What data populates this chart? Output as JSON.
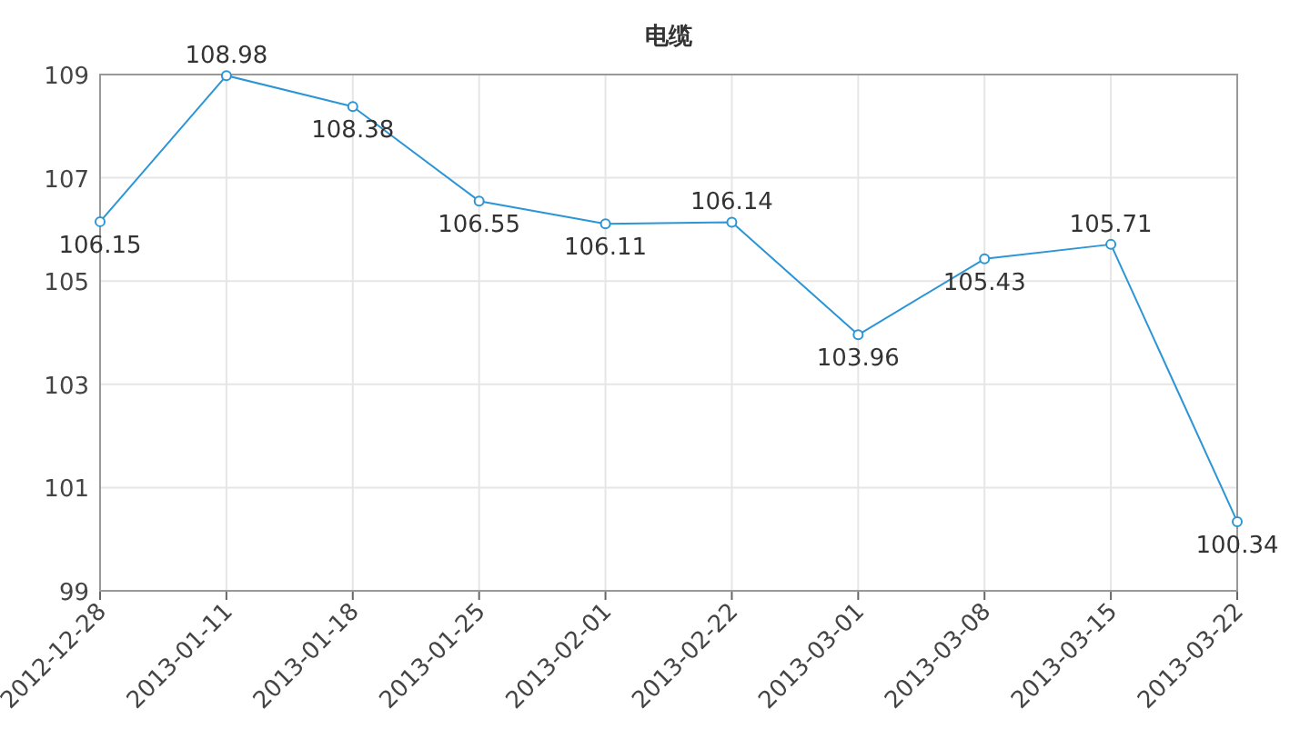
{
  "chart_data": {
    "type": "line",
    "title": "电缆",
    "categories": [
      "2012-12-28",
      "2013-01-11",
      "2013-01-18",
      "2013-01-25",
      "2013-02-01",
      "2013-02-22",
      "2013-03-01",
      "2013-03-08",
      "2013-03-15",
      "2013-03-22"
    ],
    "series": [
      {
        "color": "#2b95d6",
        "values": [
          106.15,
          108.98,
          108.38,
          106.55,
          106.11,
          106.14,
          103.96,
          105.43,
          105.71,
          100.34
        ]
      }
    ],
    "ylim": [
      99,
      109
    ],
    "yticks": [
      99,
      101,
      103,
      105,
      107,
      109
    ],
    "grid": true,
    "data_labels": true,
    "marker": "circle",
    "line_style": "solid"
  }
}
